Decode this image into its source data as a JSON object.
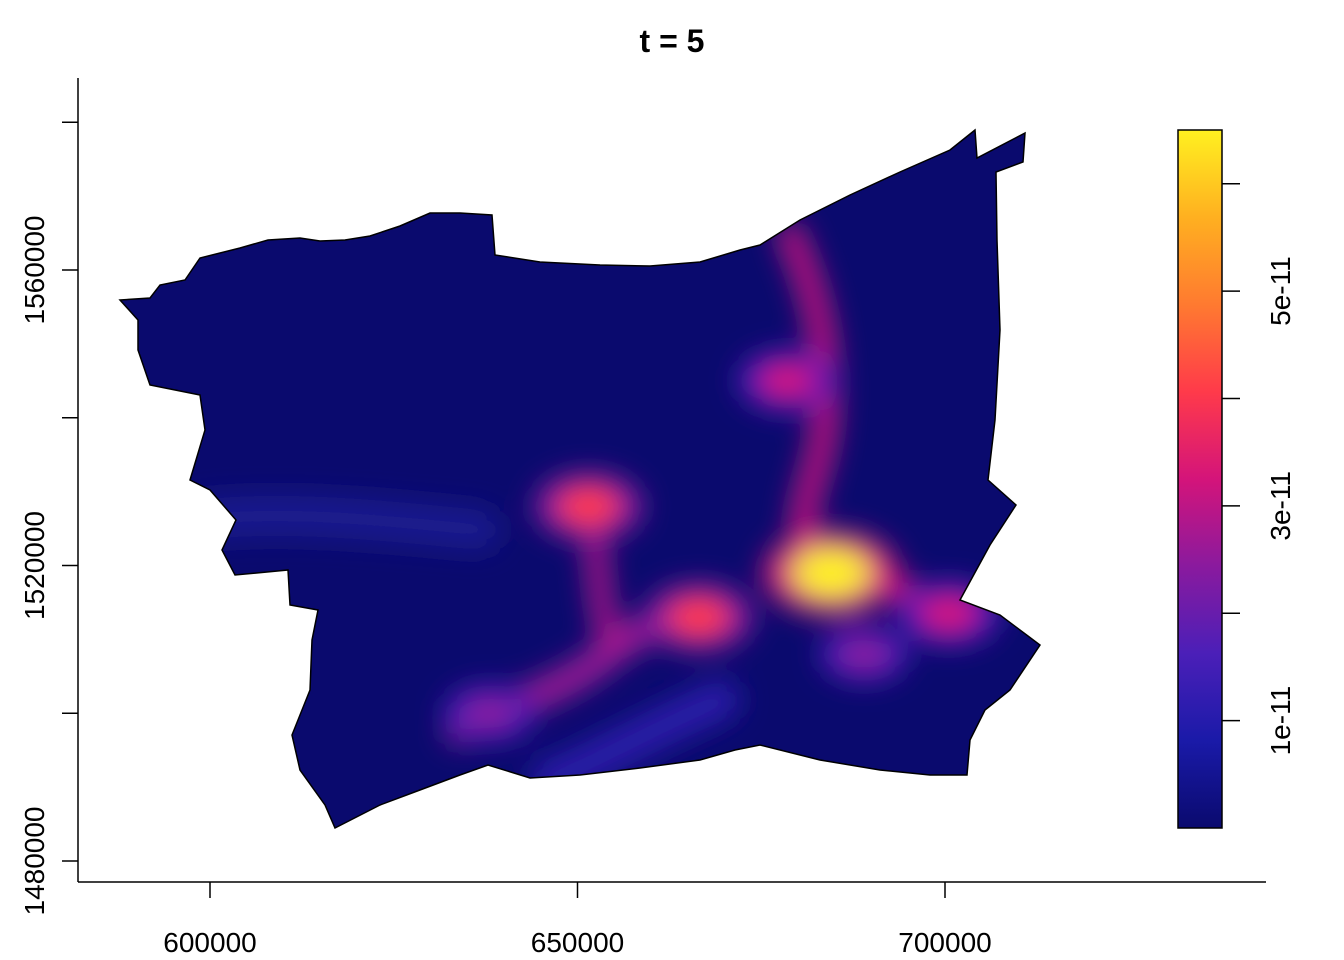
{
  "chart_data": {
    "type": "heatmap",
    "title": "t = 5",
    "xlabel": "",
    "ylabel": "",
    "x_ticks": [
      {
        "value": 600000,
        "label": "600000"
      },
      {
        "value": 650000,
        "label": "650000"
      },
      {
        "value": 700000,
        "label": "700000"
      }
    ],
    "y_ticks": [
      {
        "value": 1480000,
        "label": "1480000"
      },
      {
        "value": 1520000,
        "label": "1520000"
      },
      {
        "value": 1560000,
        "label": "1560000"
      }
    ],
    "y_minor_ticks": [
      1500000,
      1540000,
      1580000
    ],
    "xlim": [
      581800,
      743600
    ],
    "ylim": [
      1474000,
      1580000
    ],
    "legend": {
      "position": "right",
      "palette": [
        "#0a0a6e",
        "#1a1aa8",
        "#4b1fb8",
        "#8a1a9e",
        "#d4147a",
        "#ff3a4a",
        "#ff7a30",
        "#ffb020",
        "#fff020"
      ],
      "range": [
        0,
        6.5e-11
      ],
      "ticks": [
        {
          "value": 1e-11,
          "label": "1e-11"
        },
        {
          "value": 3e-11,
          "label": "3e-11"
        },
        {
          "value": 5e-11,
          "label": "5e-11"
        }
      ],
      "minor_ticks": [
        2e-11,
        4e-11,
        6e-11
      ]
    },
    "hotspots": [
      {
        "x": 684500,
        "y": 1519000,
        "intensity": 6.2e-11
      },
      {
        "x": 651500,
        "y": 1528000,
        "intensity": 4e-11
      },
      {
        "x": 666500,
        "y": 1513000,
        "intensity": 4e-11
      },
      {
        "x": 700500,
        "y": 1513500,
        "intensity": 3.6e-11
      },
      {
        "x": 678500,
        "y": 1545000,
        "intensity": 3.2e-11
      },
      {
        "x": 689000,
        "y": 1508000,
        "intensity": 2.4e-11
      },
      {
        "x": 638000,
        "y": 1500000,
        "intensity": 2.6e-11
      }
    ]
  }
}
